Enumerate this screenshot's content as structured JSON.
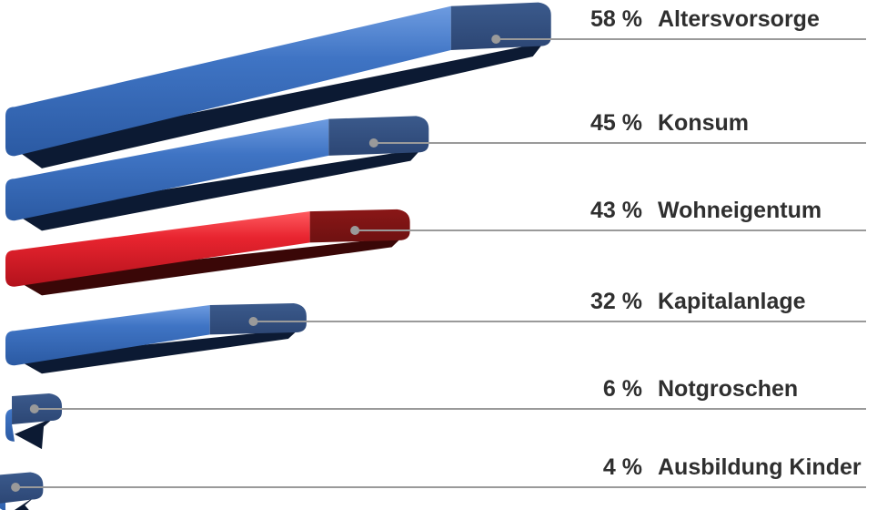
{
  "chart_data": {
    "type": "bar",
    "orientation": "horizontal",
    "style": "3d",
    "unit": "%",
    "categories": [
      "Altersvorsorge",
      "Konsum",
      "Wohneigentum",
      "Kapitalanlage",
      "Notgroschen",
      "Ausbildung Kinder"
    ],
    "values": [
      58,
      45,
      43,
      32,
      6,
      4
    ],
    "value_labels": [
      "58 %",
      "45 %",
      "43 %",
      "32 %",
      "6 %",
      "4 %"
    ],
    "highlight": "Wohneigentum",
    "colors": {
      "default_top": "#3f74c4",
      "default_end": "#2c4674",
      "default_shadow": "#0c1a33",
      "highlight_top": "#e8242f",
      "highlight_end": "#6e1111",
      "highlight_shadow": "#3a0707",
      "leader": "#9a9a9a",
      "text": "#2f2f2f"
    },
    "legend": "none",
    "grid": false
  }
}
